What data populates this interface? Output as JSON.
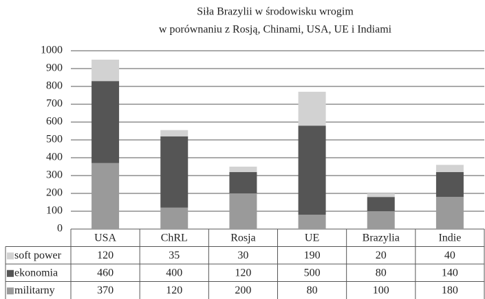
{
  "chart_data": {
    "type": "bar",
    "stacked": true,
    "title": "Siła Brazylii w środowisku wrogim",
    "subtitle": "w porównaniu z Rosją, Chinami, USA, UE i Indiami",
    "categories": [
      "USA",
      "ChRL",
      "Rosja",
      "UE",
      "Brazylia",
      "Indie"
    ],
    "series": [
      {
        "name": "militarny",
        "color": "#9a9a9a",
        "values": [
          370,
          120,
          200,
          80,
          100,
          180
        ]
      },
      {
        "name": "ekonomia",
        "color": "#555555",
        "values": [
          460,
          400,
          120,
          500,
          80,
          140
        ]
      },
      {
        "name": "soft power",
        "color": "#d2d2d2",
        "values": [
          120,
          35,
          30,
          190,
          20,
          40
        ]
      }
    ],
    "ylim": [
      0,
      1000
    ],
    "yticks": [
      0,
      100,
      200,
      300,
      400,
      500,
      600,
      700,
      800,
      900,
      1000
    ],
    "grid": true,
    "legend": "table"
  }
}
